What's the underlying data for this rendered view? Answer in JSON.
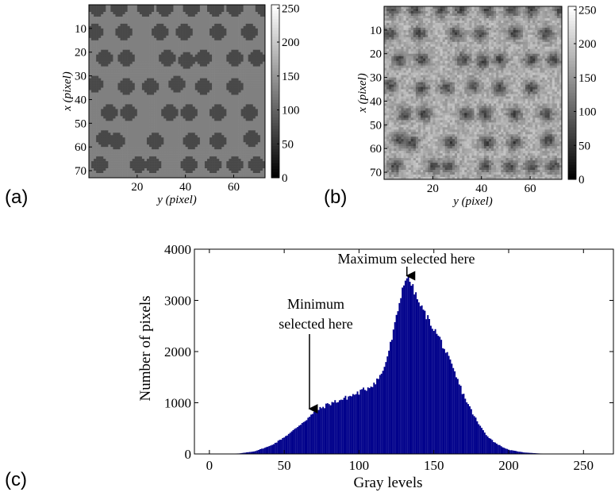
{
  "panels": {
    "a_label": "(a)",
    "b_label": "(b)",
    "c_label": "(c)"
  },
  "chart_data": [
    {
      "panel": "(a)",
      "type": "heatmap",
      "title": "",
      "xlabel": "y (pixel)",
      "ylabel": "x (pixel)",
      "x_ticks": [
        "20",
        "40",
        "60"
      ],
      "y_ticks": [
        "10",
        "20",
        "30",
        "40",
        "50",
        "60",
        "70"
      ],
      "xlim": [
        0,
        73
      ],
      "ylim": [
        0,
        73
      ],
      "colorbar_ticks": [
        "0",
        "50",
        "100",
        "150",
        "200",
        "250"
      ],
      "colorbar_range": [
        0,
        255
      ],
      "background_level": 128,
      "spot_level": 72,
      "grid": false,
      "spots": [
        {
          "x": 1,
          "y": 3
        },
        {
          "x": 1,
          "y": 12
        },
        {
          "x": 1,
          "y": 23
        },
        {
          "x": 1,
          "y": 31
        },
        {
          "x": 1,
          "y": 42
        },
        {
          "x": 1,
          "y": 52
        },
        {
          "x": 1,
          "y": 60
        },
        {
          "x": 1,
          "y": 72
        },
        {
          "x": 11,
          "y": 2
        },
        {
          "x": 11,
          "y": 14
        },
        {
          "x": 11,
          "y": 29
        },
        {
          "x": 11,
          "y": 39
        },
        {
          "x": 11,
          "y": 53
        },
        {
          "x": 11,
          "y": 66
        },
        {
          "x": 22,
          "y": 6
        },
        {
          "x": 22,
          "y": 15
        },
        {
          "x": 22,
          "y": 32
        },
        {
          "x": 23,
          "y": 40
        },
        {
          "x": 22,
          "y": 47
        },
        {
          "x": 22,
          "y": 60
        },
        {
          "x": 22,
          "y": 69
        },
        {
          "x": 33,
          "y": 2
        },
        {
          "x": 34,
          "y": 15
        },
        {
          "x": 34,
          "y": 25
        },
        {
          "x": 33,
          "y": 36
        },
        {
          "x": 34,
          "y": 47
        },
        {
          "x": 34,
          "y": 60
        },
        {
          "x": 45,
          "y": 8
        },
        {
          "x": 45,
          "y": 16
        },
        {
          "x": 45,
          "y": 33
        },
        {
          "x": 45,
          "y": 41
        },
        {
          "x": 45,
          "y": 53
        },
        {
          "x": 45,
          "y": 66
        },
        {
          "x": 56,
          "y": 6
        },
        {
          "x": 57,
          "y": 11
        },
        {
          "x": 57,
          "y": 27
        },
        {
          "x": 57,
          "y": 42
        },
        {
          "x": 57,
          "y": 53
        },
        {
          "x": 56,
          "y": 67
        },
        {
          "x": 67,
          "y": 4
        },
        {
          "x": 67,
          "y": 20
        },
        {
          "x": 67,
          "y": 26
        },
        {
          "x": 67,
          "y": 41
        },
        {
          "x": 67,
          "y": 51
        },
        {
          "x": 67,
          "y": 60
        },
        {
          "x": 67,
          "y": 69
        }
      ]
    },
    {
      "panel": "(b)",
      "type": "heatmap",
      "title": "",
      "xlabel": "y (pixel)",
      "ylabel": "x (pixel)",
      "x_ticks": [
        "20",
        "40",
        "60"
      ],
      "y_ticks": [
        "10",
        "20",
        "30",
        "40",
        "50",
        "60",
        "70"
      ],
      "xlim": [
        0,
        73
      ],
      "ylim": [
        0,
        73
      ],
      "colorbar_ticks": [
        "0",
        "50",
        "100",
        "150",
        "200",
        "250"
      ],
      "colorbar_range": [
        0,
        255
      ],
      "background_level": 175,
      "spot_level": 70,
      "grid": false,
      "note": "noisy measured version of the same spot pattern"
    },
    {
      "panel": "(c)",
      "type": "area",
      "title": "",
      "xlabel": "Gray levels",
      "ylabel": "Number of pixels",
      "xlim": [
        -10,
        270
      ],
      "ylim": [
        0,
        4000
      ],
      "x_ticks": [
        "0",
        "50",
        "100",
        "150",
        "200",
        "250"
      ],
      "y_ticks": [
        "0",
        "1000",
        "2000",
        "3000",
        "4000"
      ],
      "color": "#00008B",
      "grid": false,
      "annotations": [
        {
          "lines": [
            "Maximum selected here"
          ],
          "arrow_x": 132,
          "arrow_y": 3450
        },
        {
          "lines": [
            "Minimum",
            "selected here"
          ],
          "arrow_x": 67,
          "arrow_y": 820
        }
      ],
      "x": [
        10,
        20,
        30,
        40,
        45,
        50,
        55,
        60,
        65,
        70,
        75,
        80,
        85,
        90,
        95,
        100,
        105,
        110,
        115,
        118,
        122,
        126,
        128,
        130,
        132,
        134,
        136,
        140,
        145,
        150,
        155,
        160,
        165,
        170,
        175,
        180,
        185,
        190,
        195,
        200,
        210,
        220,
        230
      ],
      "values": [
        0,
        10,
        50,
        150,
        230,
        330,
        430,
        560,
        680,
        800,
        900,
        980,
        1030,
        1080,
        1140,
        1200,
        1280,
        1380,
        1550,
        1800,
        2250,
        2800,
        3100,
        3350,
        3450,
        3380,
        3250,
        2950,
        2700,
        2450,
        2200,
        1850,
        1500,
        1150,
        850,
        580,
        380,
        240,
        150,
        80,
        30,
        10,
        0
      ]
    }
  ]
}
